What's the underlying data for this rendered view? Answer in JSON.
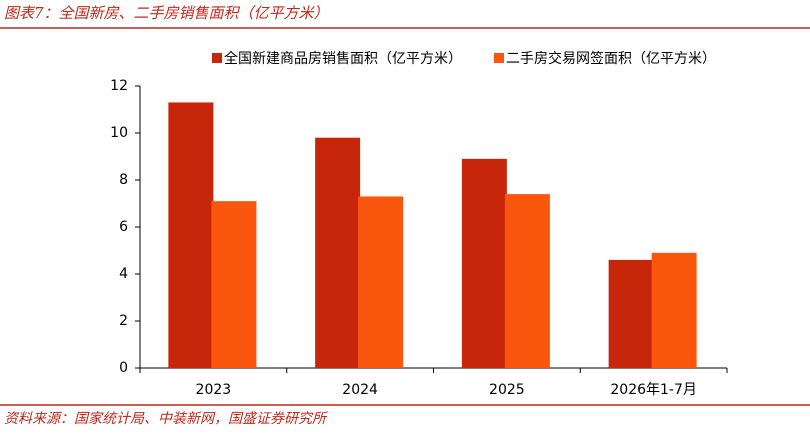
{
  "chart_data": {
    "type": "bar",
    "title": "图表7：全国新房、二手房销售面积（亿平方米）",
    "source": "资料来源：国家统计局、中装新网，国盛证券研究所",
    "categories": [
      "2023",
      "2024",
      "2025",
      "2026年1-7月"
    ],
    "series": [
      {
        "name": "全国新建商品房销售面积（亿平方米）",
        "color": "#c8260b",
        "values": [
          11.3,
          9.8,
          8.9,
          4.6
        ]
      },
      {
        "name": "二手房交易网签面积（亿平方米）",
        "color": "#fa560e",
        "values": [
          7.1,
          7.3,
          7.4,
          4.9
        ]
      }
    ],
    "ylim": [
      0,
      12
    ],
    "yticks": [
      0,
      2,
      4,
      6,
      8,
      10,
      12
    ],
    "grid": false,
    "legend": "top"
  }
}
